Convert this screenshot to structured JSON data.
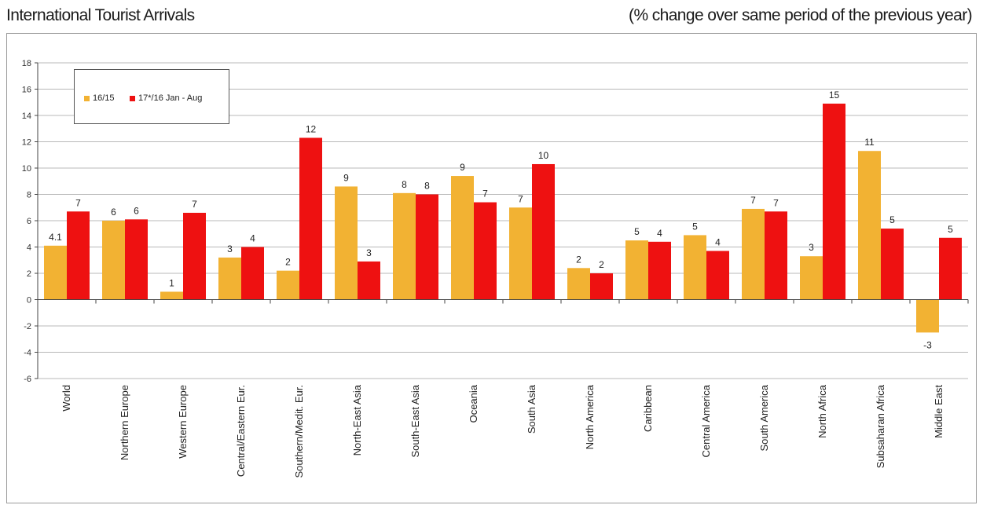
{
  "header": {
    "title": "International Tourist Arrivals",
    "subtitle": "(% change over same period of the previous year)"
  },
  "colors": {
    "series_a": "#F2B233",
    "series_b": "#EE1111",
    "grid": "#b8b8b8"
  },
  "chart_data": {
    "type": "bar",
    "title": "International Tourist Arrivals",
    "subtitle": "(% change over same period of the previous year)",
    "categories": [
      "World",
      "Northern Europe",
      "Western Europe",
      "Central/Eastern Eur.",
      "Southern/Medit. Eur.",
      "North-East Asia",
      "South-East Asia",
      "Oceania",
      "South Asia",
      "North America",
      "Caribbean",
      "Central America",
      "South America",
      "North Africa",
      "Subsaharan Africa",
      "Middle East"
    ],
    "series": [
      {
        "name": "16/15",
        "values": [
          4.1,
          6.0,
          0.6,
          3.2,
          2.2,
          8.6,
          8.1,
          9.4,
          7.0,
          2.4,
          4.5,
          4.9,
          6.9,
          3.3,
          11.3,
          -2.5
        ],
        "labels": [
          "4.1",
          "6",
          "1",
          "3",
          "2",
          "9",
          "8",
          "9",
          "7",
          "2",
          "5",
          "5",
          "7",
          "3",
          "11",
          "-3"
        ]
      },
      {
        "name": "17*/16 Jan - Aug",
        "values": [
          6.7,
          6.1,
          6.6,
          4.0,
          12.3,
          2.9,
          8.0,
          7.4,
          10.3,
          2.0,
          4.4,
          3.7,
          6.7,
          14.9,
          5.4,
          4.7
        ],
        "labels": [
          "7",
          "6",
          "7",
          "4",
          "12",
          "3",
          "8",
          "7",
          "10",
          "2",
          "4",
          "4",
          "7",
          "15",
          "5",
          "5"
        ]
      }
    ],
    "ylim": [
      -6,
      18
    ],
    "yticks": [
      -6,
      -4,
      -2,
      0,
      2,
      4,
      6,
      8,
      10,
      12,
      14,
      16,
      18
    ],
    "grid": true,
    "legend_position": "top-left"
  }
}
